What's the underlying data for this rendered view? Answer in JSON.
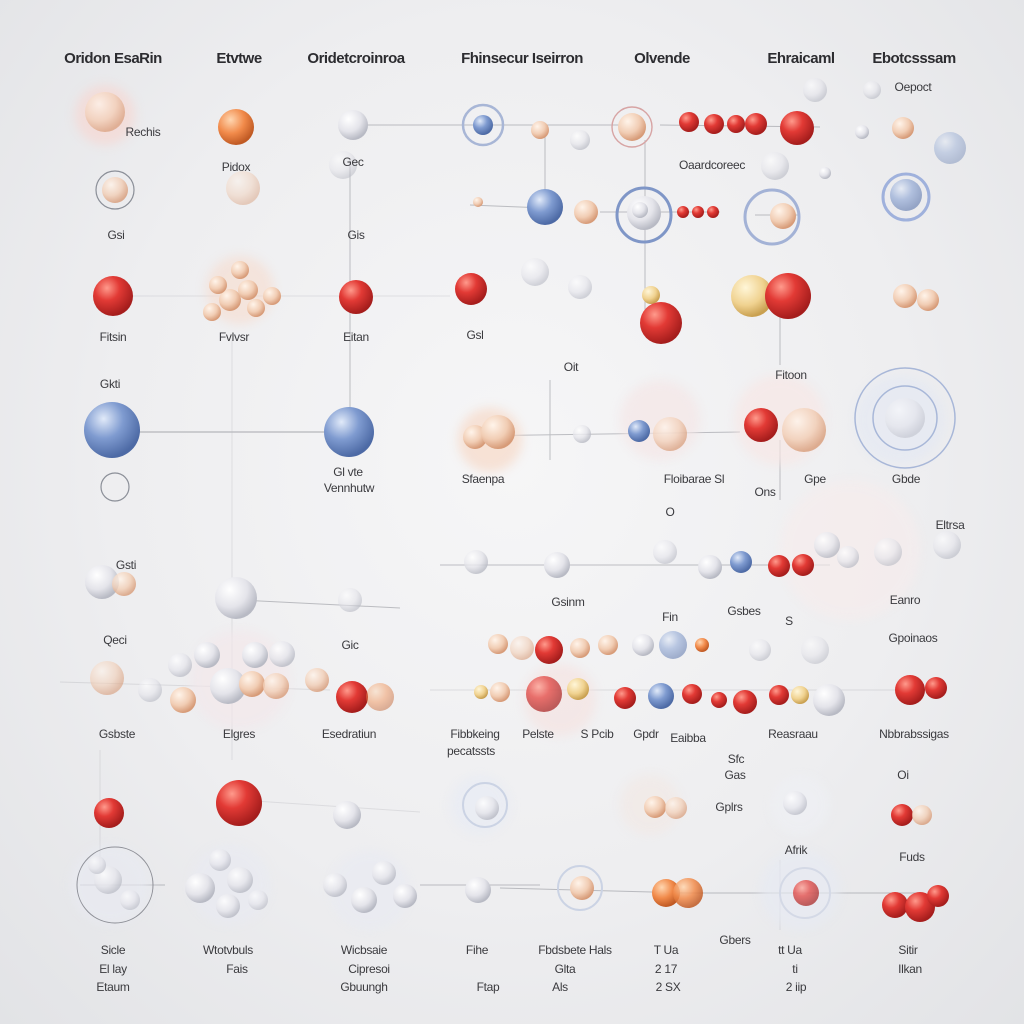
{
  "headers": [
    "Oridon EsaRin",
    "Etvtwe",
    "Oridetcroinroa",
    "Fhinsecur Iseirron",
    "Olvende",
    "Ehraicaml",
    "Ebotcsssam"
  ],
  "labels": {
    "r1": [
      "Rechis",
      "Pidox",
      "Gec",
      "Oaardcoreec",
      "Oepoct"
    ],
    "r2": [
      "Gsi",
      "Gis"
    ],
    "r3": [
      "Fitsin",
      "Fvlvsr",
      "Eitan",
      "Gsl",
      "Fitoon",
      "Oit"
    ],
    "r4": [
      "Gkti",
      "Gl vte",
      "Vennhutw",
      "Sfaenpa",
      "Floibarae Sl",
      "Ons",
      "Gpe",
      "Gbde",
      "O"
    ],
    "r5": [
      "Gsti",
      "Eltrsa",
      "Gsinm",
      "Eanro",
      "Fin",
      "Gsbes",
      "S"
    ],
    "r6": [
      "Qeci",
      "Gic",
      "Gpoinaos"
    ],
    "r7": [
      "Gsbste",
      "Elgres",
      "Esedratiun",
      "Fibbkeing",
      "pecatssts",
      "Pelste",
      "S Pcib",
      "Gpdr",
      "Eaibba",
      "Reasraau",
      "Nbbrabssigas"
    ],
    "r8": [
      "Sfc",
      "Gas",
      "Gplrs",
      "Fuds",
      "Afrik",
      "Oi"
    ],
    "bottom": [
      "Sicle",
      "El lay",
      "Etaum",
      "Wtotvbuls",
      "Fais",
      "Wicbsaie",
      "Cipresoi",
      "Gbuungh",
      "Fihe",
      "Ftap",
      "Fbdsbete Hals",
      "Glta",
      "Als",
      "T Ua",
      "2 17",
      "2 SX",
      "Gbers",
      "tt Ua",
      "ti",
      "2 iip",
      "Sitir",
      "Ilkan"
    ]
  },
  "palette": {
    "red": "#e23a35",
    "blue": "#7895c8",
    "white": "#e8e8ec",
    "peach": "#f1c9ad",
    "orange": "#f18a4a",
    "line": "#8e9097"
  }
}
